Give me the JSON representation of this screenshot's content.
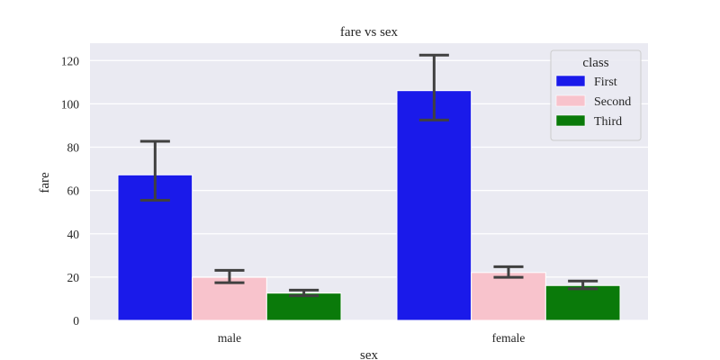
{
  "chart_data": {
    "type": "bar",
    "title": "fare vs sex",
    "xlabel": "sex",
    "ylabel": "fare",
    "categories": [
      "male",
      "female"
    ],
    "ylim": [
      0,
      128
    ],
    "yticks": [
      0,
      20,
      40,
      60,
      80,
      100,
      120
    ],
    "grid": true,
    "legend": {
      "title": "class",
      "placement": "top-right"
    },
    "series": [
      {
        "name": "First",
        "color": "#1a1aea",
        "values": [
          67.2,
          106.1
        ],
        "error_low": [
          55.5,
          92.5
        ],
        "error_high": [
          82.7,
          122.5
        ]
      },
      {
        "name": "Second",
        "color": "#f8c3cc",
        "values": [
          19.9,
          22.1
        ],
        "error_low": [
          17.4,
          19.9
        ],
        "error_high": [
          23.1,
          24.8
        ]
      },
      {
        "name": "Third",
        "color": "#0a7a0a",
        "values": [
          12.6,
          16.1
        ],
        "error_low": [
          11.4,
          14.6
        ],
        "error_high": [
          14.0,
          18.2
        ]
      }
    ]
  },
  "style": {
    "plot_background": "#eaeaf2",
    "grid_color": "#ffffff",
    "error_bar_color": "#404040"
  }
}
